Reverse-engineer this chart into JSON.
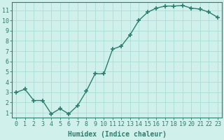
{
  "x": [
    0,
    1,
    2,
    3,
    4,
    5,
    6,
    7,
    8,
    9,
    10,
    11,
    12,
    13,
    14,
    15,
    16,
    17,
    18,
    19,
    20,
    21,
    22,
    23
  ],
  "y": [
    3.0,
    3.3,
    2.2,
    2.2,
    0.9,
    1.4,
    0.9,
    1.7,
    3.1,
    4.8,
    4.8,
    7.2,
    7.5,
    8.6,
    10.0,
    10.8,
    11.2,
    11.4,
    11.4,
    11.45,
    11.2,
    11.1,
    10.8,
    10.3
  ],
  "line_color": "#2e7d6e",
  "marker": "+",
  "marker_size": 4,
  "bg_color": "#cff0eb",
  "grid_color": "#aaddd6",
  "xlabel": "Humidex (Indice chaleur)",
  "xlim": [
    -0.5,
    23.5
  ],
  "ylim": [
    0.5,
    11.8
  ],
  "yticks": [
    1,
    2,
    3,
    4,
    5,
    6,
    7,
    8,
    9,
    10,
    11
  ],
  "xticks": [
    0,
    1,
    2,
    3,
    4,
    5,
    6,
    7,
    8,
    9,
    10,
    11,
    12,
    13,
    14,
    15,
    16,
    17,
    18,
    19,
    20,
    21,
    22,
    23
  ],
  "tick_color": "#2e7d6e",
  "label_fontsize": 6,
  "xlabel_fontsize": 7,
  "axis_color": "#2e7d6e",
  "linewidth": 1.0,
  "marker_linewidth": 1.2
}
